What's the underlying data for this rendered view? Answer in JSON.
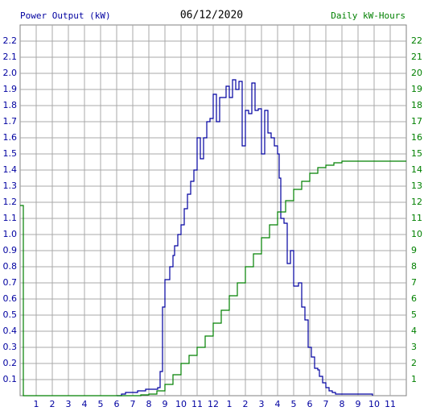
{
  "chart_data": {
    "type": "step-line",
    "title": "06/12/2020",
    "xlim": [
      0,
      24
    ],
    "xticks": [
      1,
      2,
      3,
      4,
      5,
      6,
      7,
      8,
      9,
      10,
      11,
      12,
      {
        "value": 13,
        "label": "1"
      },
      {
        "value": 14,
        "label": "2"
      },
      {
        "value": 15,
        "label": "3"
      },
      {
        "value": 16,
        "label": "4"
      },
      {
        "value": 17,
        "label": "5"
      },
      {
        "value": 18,
        "label": "6"
      },
      {
        "value": 19,
        "label": "7"
      },
      {
        "value": 20,
        "label": "8"
      },
      {
        "value": 21,
        "label": "9"
      },
      {
        "value": 22,
        "label": "10"
      },
      {
        "value": 23,
        "label": "11"
      }
    ],
    "ylim": [
      0,
      2.3
    ],
    "yticks": [
      0.1,
      0.2,
      0.3,
      0.4,
      0.5,
      0.6,
      0.7,
      0.8,
      0.9,
      {
        "value": 1,
        "label": "1.0"
      },
      1.1,
      1.2,
      1.3,
      1.4,
      1.5,
      1.6,
      1.7,
      1.8,
      1.9,
      {
        "value": 2,
        "label": "2.0"
      },
      2.1,
      2.2
    ],
    "y2lim": [
      0,
      23
    ],
    "y2ticks": [
      1,
      2,
      3,
      4,
      5,
      6,
      7,
      8,
      9,
      10,
      11,
      12,
      13,
      14,
      15,
      16,
      17,
      18,
      19,
      20,
      21,
      22
    ],
    "grid": true,
    "series": [
      {
        "name": "Power Output (kW)",
        "color": "#0000a0",
        "x": [
          6.0,
          6.3,
          6.55,
          7.3,
          7.8,
          8.55,
          8.7,
          8.85,
          9.0,
          9.3,
          9.5,
          9.6,
          9.8,
          10.0,
          10.2,
          10.4,
          10.6,
          10.8,
          11.0,
          11.2,
          11.4,
          11.6,
          11.8,
          12.0,
          12.2,
          12.4,
          12.8,
          13.0,
          13.2,
          13.4,
          13.6,
          13.8,
          14.0,
          14.2,
          14.4,
          14.6,
          14.8,
          15.0,
          15.2,
          15.4,
          15.6,
          15.8,
          16.0,
          16.1,
          16.2,
          16.4,
          16.6,
          16.8,
          17.0,
          17.3,
          17.5,
          17.7,
          17.9,
          18.1,
          18.3,
          18.5,
          18.6,
          18.8,
          19.0,
          19.2,
          19.4,
          19.6,
          21.9
        ],
        "values": [
          0,
          0.01,
          0.02,
          0.03,
          0.04,
          0.05,
          0.15,
          0.55,
          0.72,
          0.8,
          0.87,
          0.93,
          1.0,
          1.06,
          1.16,
          1.25,
          1.33,
          1.4,
          1.6,
          1.47,
          1.6,
          1.7,
          1.72,
          1.87,
          1.7,
          1.85,
          1.92,
          1.85,
          1.96,
          1.9,
          1.95,
          1.55,
          1.77,
          1.75,
          1.94,
          1.77,
          1.78,
          1.5,
          1.77,
          1.63,
          1.6,
          1.55,
          1.5,
          1.35,
          1.1,
          1.07,
          0.82,
          0.9,
          0.68,
          0.7,
          0.55,
          0.47,
          0.3,
          0.24,
          0.17,
          0.16,
          0.12,
          0.08,
          0.05,
          0.03,
          0.02,
          0.01,
          0
        ]
      },
      {
        "name": "Daily kW-Hours",
        "color": "#008000",
        "axis": "y2",
        "x": [
          0,
          0.2,
          7.5,
          8,
          8.5,
          9,
          9.5,
          10,
          10.5,
          11,
          11.5,
          12,
          12.5,
          13,
          13.5,
          14,
          14.5,
          15,
          15.5,
          16,
          16.5,
          17,
          17.5,
          18,
          18.5,
          19,
          19.5,
          20,
          24
        ],
        "values": [
          11.8,
          0,
          0.05,
          0.1,
          0.3,
          0.7,
          1.3,
          2.0,
          2.5,
          3.0,
          3.7,
          4.5,
          5.3,
          6.2,
          7.0,
          8.0,
          8.8,
          9.8,
          10.6,
          11.4,
          12.1,
          12.8,
          13.3,
          13.8,
          14.15,
          14.3,
          14.45,
          14.55,
          14.55
        ]
      }
    ]
  }
}
